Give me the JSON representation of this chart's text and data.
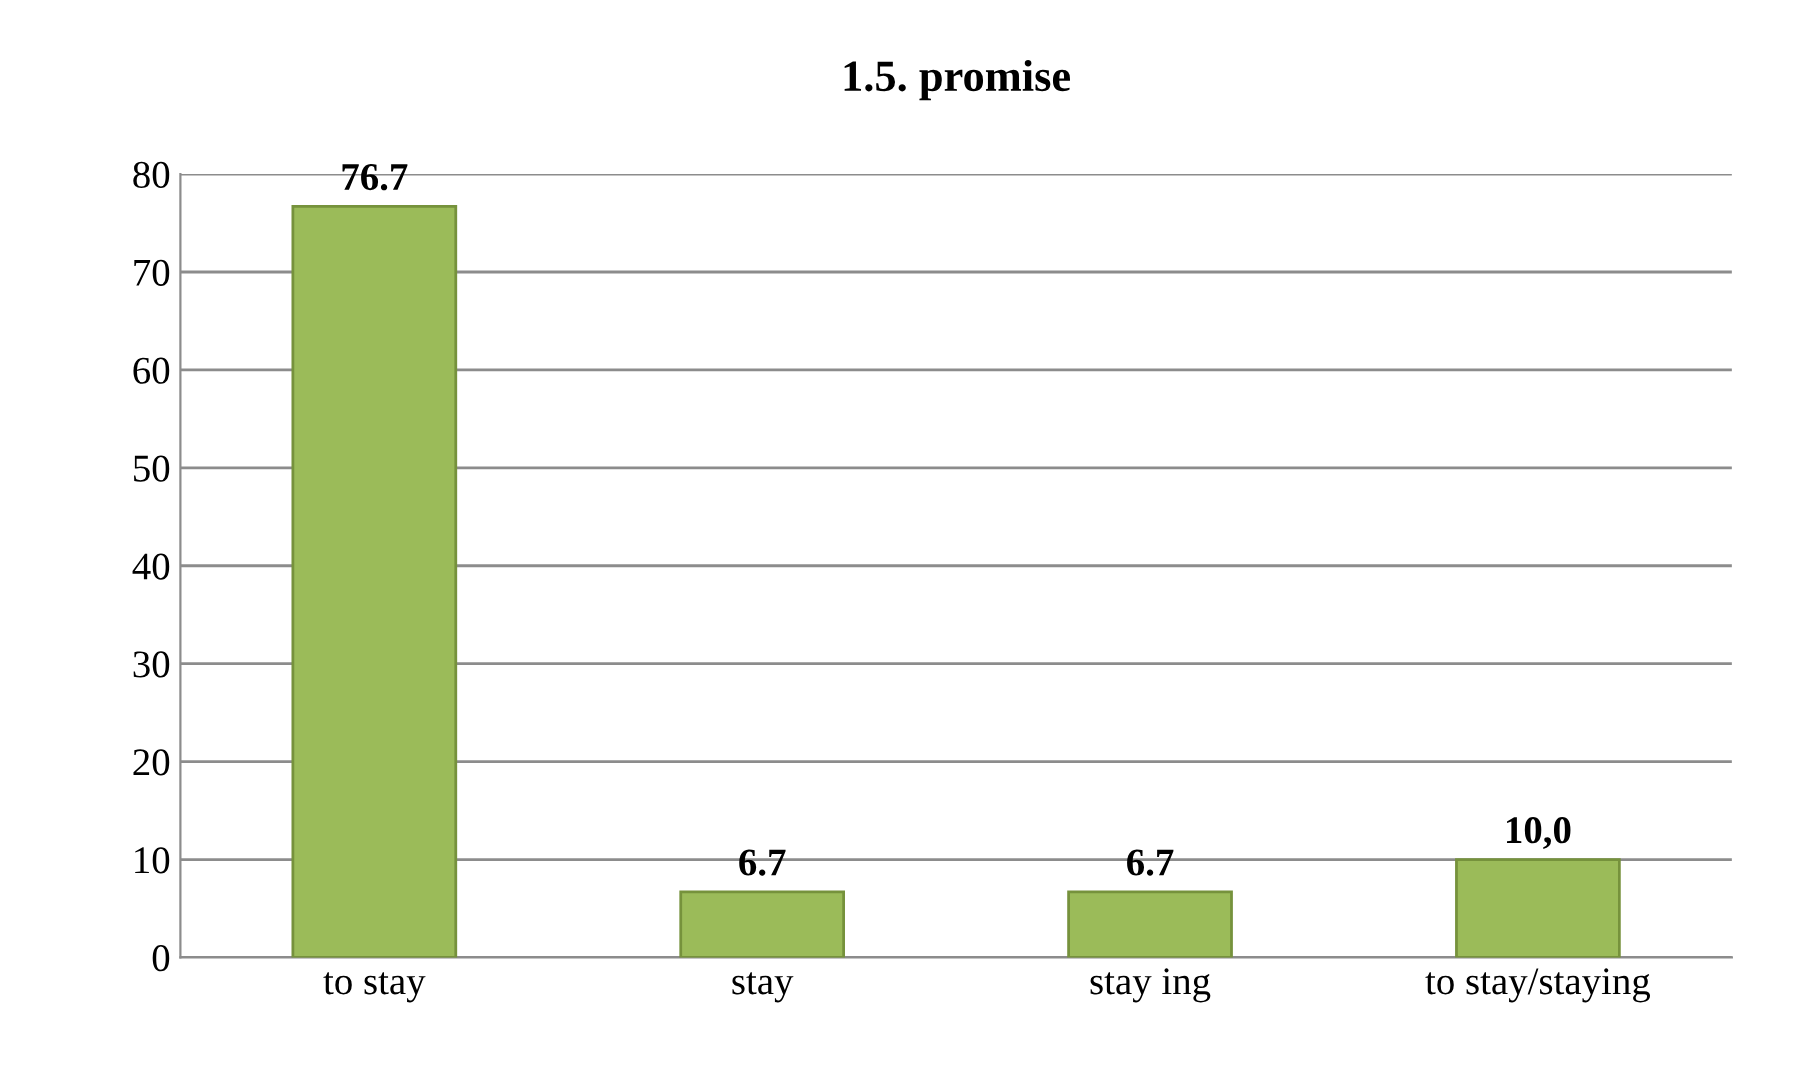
{
  "chart_data": {
    "type": "bar",
    "title": "1.5. promise",
    "categories": [
      "to stay",
      "stay",
      "stay ing",
      "to stay/staying"
    ],
    "values": [
      76.7,
      6.7,
      6.7,
      10.0
    ],
    "value_labels": [
      "76.7",
      "6.7",
      "6.7",
      "10,0"
    ],
    "color": "#9bbb59",
    "ylim": [
      0,
      80
    ],
    "yticks": [
      0,
      10,
      20,
      30,
      40,
      50,
      60,
      70,
      80
    ],
    "grid": "y",
    "legend": false
  }
}
